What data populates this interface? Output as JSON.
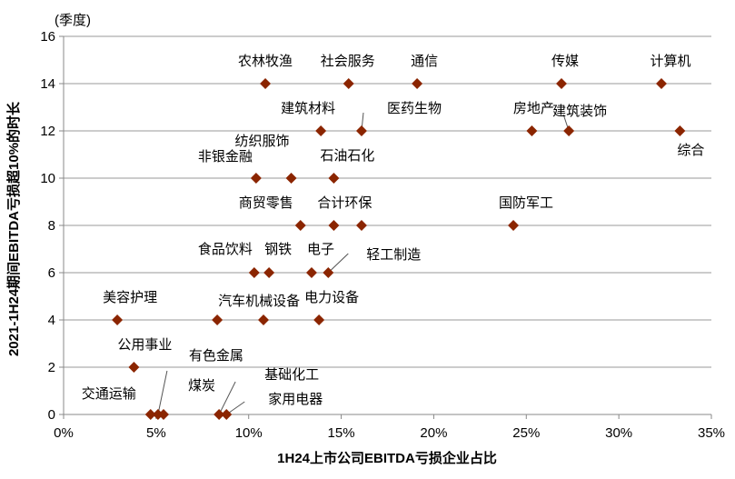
{
  "chart_data": {
    "type": "scatter",
    "xlabel": "1H24上市公司EBITDA亏损企业占比",
    "ylabel": "2021-1H24期间EBITDA亏损超10%的时长",
    "yunit": "(季度)",
    "xlim": [
      0,
      35
    ],
    "ylim": [
      0,
      16
    ],
    "xticks": [
      "0%",
      "5%",
      "10%",
      "15%",
      "20%",
      "25%",
      "30%",
      "35%"
    ],
    "yticks": [
      "0",
      "2",
      "4",
      "6",
      "8",
      "10",
      "12",
      "14",
      "16"
    ],
    "marker_color": "#8B2500",
    "points": [
      {
        "label": "农林牧渔",
        "x": 10.9,
        "y": 14
      },
      {
        "label": "社会服务",
        "x": 15.4,
        "y": 14
      },
      {
        "label": "通信",
        "x": 19.1,
        "y": 14
      },
      {
        "label": "传媒",
        "x": 26.9,
        "y": 14
      },
      {
        "label": "计算机",
        "x": 32.3,
        "y": 14
      },
      {
        "label": "建筑材料",
        "x": 13.9,
        "y": 12
      },
      {
        "label": "医药生物",
        "x": 16.1,
        "y": 12
      },
      {
        "label": "房地产",
        "x": 25.3,
        "y": 12
      },
      {
        "label": "建筑装饰",
        "x": 27.3,
        "y": 12
      },
      {
        "label": "综合",
        "x": 33.3,
        "y": 12
      },
      {
        "label": "纺织服饰",
        "x": 12.3,
        "y": 10
      },
      {
        "label": "非银金融",
        "x": 10.4,
        "y": 10
      },
      {
        "label": "石油石化",
        "x": 14.6,
        "y": 10
      },
      {
        "label": "商贸零售",
        "x": 12.8,
        "y": 8
      },
      {
        "label": "合计环保",
        "x": 14.6,
        "y": 8
      },
      {
        "label": "国防军工",
        "x": 24.3,
        "y": 8
      },
      {
        "label": "",
        "x": 16.1,
        "y": 8
      },
      {
        "label": "食品饮料",
        "x": 10.3,
        "y": 6
      },
      {
        "label": "钢铁",
        "x": 11.1,
        "y": 6
      },
      {
        "label": "电子",
        "x": 13.4,
        "y": 6
      },
      {
        "label": "轻工制造",
        "x": 14.3,
        "y": 6
      },
      {
        "label": "美容护理",
        "x": 2.9,
        "y": 4
      },
      {
        "label": "汽车机械设备",
        "x": 8.3,
        "y": 4
      },
      {
        "label": "",
        "x": 10.8,
        "y": 4
      },
      {
        "label": "电力设备",
        "x": 13.8,
        "y": 4
      },
      {
        "label": "公用事业",
        "x": 3.8,
        "y": 2
      },
      {
        "label": "交通运输",
        "x": 4.7,
        "y": 0
      },
      {
        "label": "有色金属",
        "x": 5.1,
        "y": 0
      },
      {
        "label": "煤炭",
        "x": 5.4,
        "y": 0
      },
      {
        "label": "基础化工",
        "x": 8.4,
        "y": 0
      },
      {
        "label": "家用电器",
        "x": 8.8,
        "y": 0
      }
    ]
  }
}
